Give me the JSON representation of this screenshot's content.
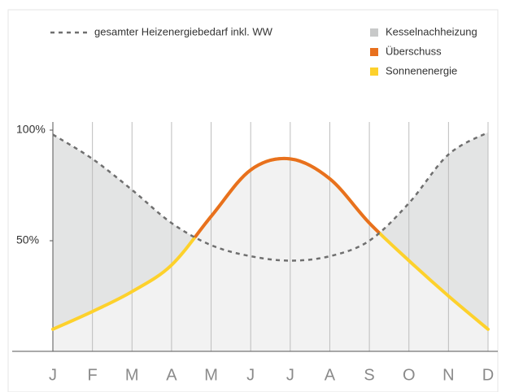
{
  "chart_data": {
    "type": "line",
    "categories": [
      "J",
      "F",
      "M",
      "A",
      "M",
      "J",
      "J",
      "A",
      "S",
      "O",
      "N",
      "D"
    ],
    "series": [
      {
        "name": "gesamter Heizenergiebedarf inkl. WW",
        "color": "#6f6f6f",
        "dashed": true,
        "values": [
          98,
          87,
          73,
          58,
          48,
          43,
          41,
          43,
          50,
          67,
          89,
          99
        ]
      },
      {
        "name": "Sonnenenergie",
        "color": "#fdd12c",
        "values": [
          10,
          18,
          27,
          39,
          61,
          82,
          87,
          78,
          58,
          41,
          25,
          10
        ]
      }
    ],
    "areas": [
      {
        "name": "Kesselnachheizung",
        "color": "#c8c9c9"
      },
      {
        "name": "Überschuss",
        "color": "#e8701e"
      }
    ],
    "ylim": [
      0,
      100
    ],
    "yticks": [
      {
        "value": 50,
        "label": "50%"
      },
      {
        "value": 100,
        "label": "100%"
      }
    ]
  }
}
